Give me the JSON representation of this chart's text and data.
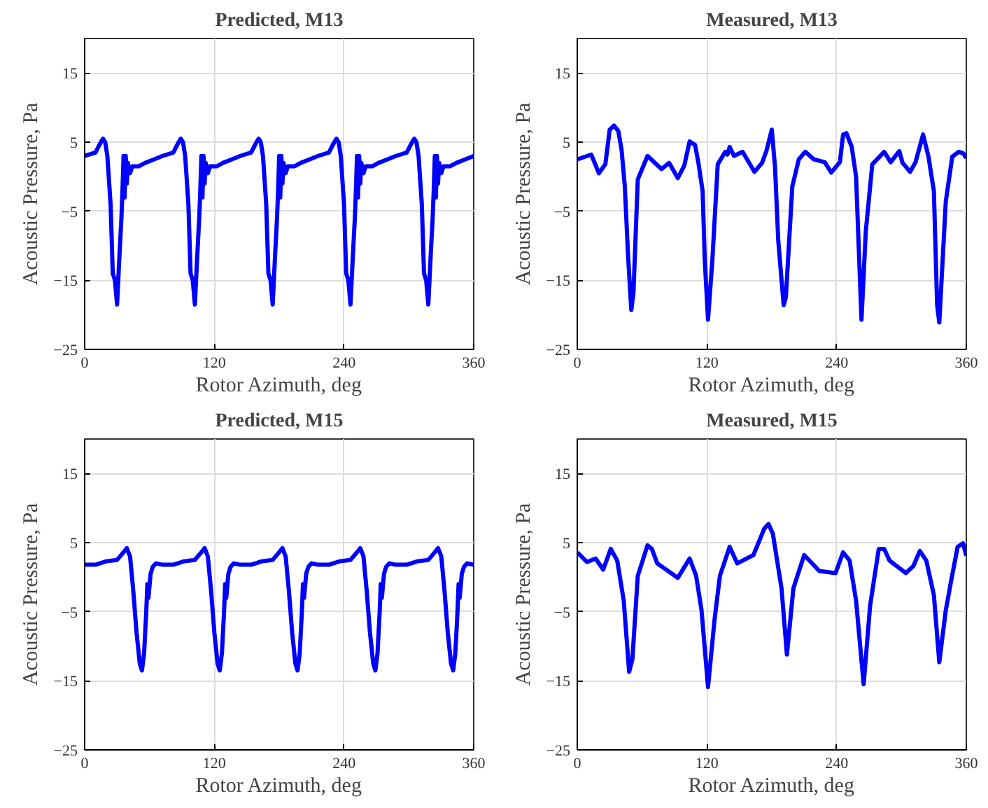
{
  "chart_data": [
    {
      "type": "line",
      "title": "Predicted, M13",
      "xlabel": "Rotor Azimuth, deg",
      "ylabel": "Acoustic Pressure, Pa",
      "xlim": [
        0,
        360
      ],
      "xticks": [
        0,
        120,
        240,
        360
      ],
      "ylim": [
        -25,
        20
      ],
      "yticks": [
        -25,
        -15,
        -5,
        5,
        15
      ],
      "grid": true,
      "line_style": "solid",
      "marker": "none",
      "series": [
        {
          "color": "#0000ff",
          "x": [
            0,
            10,
            15,
            17,
            19,
            21,
            24,
            26,
            28,
            30,
            32,
            34,
            35,
            36,
            37,
            38,
            39,
            40,
            42,
            44,
            50,
            56,
            64,
            72,
            82,
            87,
            89,
            91,
            93,
            96,
            98,
            100,
            102,
            104,
            106,
            107,
            108,
            109,
            110,
            111,
            112,
            114,
            116,
            122,
            128,
            136,
            144,
            154,
            159,
            161,
            163,
            165,
            168,
            170,
            172,
            174,
            176,
            178,
            179,
            180,
            181,
            182,
            183,
            184,
            186,
            188,
            194,
            200,
            208,
            216,
            226,
            231,
            233,
            235,
            237,
            240,
            242,
            244,
            246,
            248,
            250,
            251,
            252,
            253,
            254,
            255,
            256,
            258,
            260,
            266,
            272,
            280,
            288,
            298,
            303,
            305,
            307,
            309,
            312,
            314,
            316,
            318,
            320,
            322,
            323,
            324,
            325,
            326,
            327,
            328,
            330,
            332,
            338,
            344,
            352,
            360
          ],
          "values": [
            3,
            3.5,
            5,
            5.5,
            5,
            3,
            -4,
            -14,
            -15,
            -18.5,
            -12,
            -6,
            -2,
            3,
            -3,
            3,
            -1,
            2,
            0.5,
            1.5,
            1.5,
            2,
            2.5,
            3,
            3.5,
            5,
            5.5,
            5,
            3,
            -4,
            -14,
            -15,
            -18.5,
            -12,
            -6,
            -2,
            3,
            -3,
            3,
            -1,
            2,
            0.5,
            1.5,
            1.5,
            2,
            2.5,
            3,
            3.5,
            5,
            5.5,
            5,
            3,
            -4,
            -14,
            -15,
            -18.5,
            -12,
            -6,
            -2,
            3,
            -3,
            3,
            -1,
            2,
            0.5,
            1.5,
            1.5,
            2,
            2.5,
            3,
            3.5,
            5,
            5.5,
            5,
            3,
            -4,
            -14,
            -15,
            -18.5,
            -12,
            -6,
            -2,
            3,
            -3,
            3,
            -1,
            2,
            0.5,
            1.5,
            1.5,
            2,
            2.5,
            3,
            3.5,
            5,
            5.5,
            5,
            3,
            -4,
            -14,
            -15,
            -18.5,
            -12,
            -6,
            -2,
            3,
            -3,
            3,
            -1,
            2,
            0.5,
            1.5,
            1.5,
            2,
            2.5,
            3
          ]
        }
      ]
    },
    {
      "type": "line",
      "title": "Measured, M13",
      "xlabel": "Rotor Azimuth, deg",
      "ylabel": "Acoustic Pressure, Pa",
      "xlim": [
        0,
        360
      ],
      "xticks": [
        0,
        120,
        240,
        360
      ],
      "ylim": [
        -25,
        20
      ],
      "yticks": [
        -25,
        -15,
        -5,
        5,
        15
      ],
      "grid": true,
      "line_style": "solid",
      "marker": "none",
      "series": [
        {
          "color": "#0000ff",
          "x": [
            0,
            13,
            20,
            26,
            30,
            34,
            38,
            41,
            44,
            47,
            50,
            52,
            56,
            65,
            78,
            85,
            93,
            99,
            104,
            109,
            112,
            116,
            118,
            121,
            125,
            130,
            137,
            139,
            141,
            145,
            153,
            164,
            171,
            175,
            180,
            183,
            186,
            191,
            193,
            199,
            205,
            211,
            219,
            229,
            235,
            243,
            246,
            249,
            254,
            258,
            263,
            267,
            273,
            284,
            290,
            298,
            301,
            308,
            313,
            320,
            325,
            330,
            333,
            335,
            341,
            347,
            353,
            357,
            360
          ],
          "values": [
            2.5,
            3.2,
            0.5,
            1.8,
            6.8,
            7.4,
            6.6,
            3.9,
            -1.4,
            -11.4,
            -19.3,
            -16.8,
            -0.4,
            3,
            1.1,
            2,
            -0.2,
            1.6,
            5.1,
            4.6,
            2.1,
            -2.1,
            -12.1,
            -20.7,
            -12.1,
            1.8,
            3.6,
            3.2,
            4.3,
            3,
            3.6,
            0.7,
            2,
            3.7,
            6.8,
            1.4,
            -9.3,
            -18.6,
            -17.5,
            -1.4,
            2.5,
            3.6,
            2.5,
            2.1,
            0.6,
            2.1,
            6.1,
            6.3,
            4.3,
            0,
            -20.7,
            -7.9,
            1.8,
            3.6,
            2.1,
            3.7,
            2,
            0.7,
            2.1,
            6.1,
            2.9,
            -2.1,
            -18.6,
            -21.1,
            -3.6,
            2.9,
            3.6,
            3.4,
            2.7
          ]
        }
      ]
    },
    {
      "type": "line",
      "title": "Predicted, M15",
      "xlabel": "Rotor Azimuth, deg",
      "ylabel": "Acoustic Pressure, Pa",
      "xlim": [
        0,
        360
      ],
      "xticks": [
        0,
        120,
        240,
        360
      ],
      "ylim": [
        -25,
        20
      ],
      "yticks": [
        -25,
        -15,
        -5,
        5,
        15
      ],
      "grid": true,
      "line_style": "solid",
      "marker": "none",
      "series": [
        {
          "color": "#0000ff",
          "x": [
            0,
            10,
            20,
            30,
            37,
            39,
            42,
            45,
            48,
            51,
            53,
            55,
            57,
            58,
            59,
            61,
            63,
            66,
            72,
            82,
            92,
            102,
            109,
            111,
            114,
            117,
            120,
            123,
            125,
            127,
            129,
            130,
            131,
            133,
            135,
            138,
            144,
            154,
            164,
            174,
            181,
            183,
            186,
            189,
            192,
            195,
            197,
            199,
            201,
            202,
            203,
            205,
            207,
            210,
            216,
            226,
            236,
            246,
            253,
            255,
            258,
            261,
            264,
            267,
            269,
            271,
            273,
            274,
            275,
            277,
            279,
            282,
            288,
            298,
            308,
            318,
            325,
            327,
            330,
            333,
            336,
            339,
            341,
            343,
            345,
            346,
            347,
            349,
            351,
            354,
            360
          ],
          "values": [
            1.8,
            1.8,
            2.3,
            2.5,
            3.8,
            4.2,
            3,
            -2,
            -8,
            -12.5,
            -13.5,
            -11,
            -5,
            -1,
            -3,
            0.5,
            1.5,
            2,
            1.8,
            1.8,
            2.3,
            2.5,
            3.8,
            4.2,
            3,
            -2,
            -8,
            -12.5,
            -13.5,
            -11,
            -5,
            -1,
            -3,
            0.5,
            1.5,
            2,
            1.8,
            1.8,
            2.3,
            2.5,
            3.8,
            4.2,
            3,
            -2,
            -8,
            -12.5,
            -13.5,
            -11,
            -5,
            -1,
            -3,
            0.5,
            1.5,
            2,
            1.8,
            1.8,
            2.3,
            2.5,
            3.8,
            4.2,
            3,
            -2,
            -8,
            -12.5,
            -13.5,
            -11,
            -5,
            -1,
            -3,
            0.5,
            1.5,
            2,
            1.8,
            1.8,
            2.3,
            2.5,
            3.8,
            4.2,
            3,
            -2,
            -8,
            -12.5,
            -13.5,
            -11,
            -5,
            -1,
            -3,
            0.5,
            1.5,
            2,
            1.8
          ]
        }
      ]
    },
    {
      "type": "line",
      "title": "Measured, M15",
      "xlabel": "Rotor Azimuth, deg",
      "ylabel": "Acoustic Pressure, Pa",
      "xlim": [
        0,
        360
      ],
      "xticks": [
        0,
        120,
        240,
        360
      ],
      "ylim": [
        -25,
        20
      ],
      "yticks": [
        -25,
        -15,
        -5,
        5,
        15
      ],
      "grid": true,
      "line_style": "solid",
      "marker": "none",
      "series": [
        {
          "color": "#0000ff",
          "x": [
            0,
            9,
            17,
            24,
            31,
            37,
            43,
            48,
            51,
            56,
            65,
            69,
            74,
            93,
            104,
            110,
            115,
            121,
            127,
            132,
            141,
            148,
            163,
            173,
            177,
            181,
            189,
            194,
            200,
            210,
            224,
            239,
            246,
            252,
            258,
            265,
            271,
            279,
            284,
            289,
            304,
            311,
            317,
            323,
            330,
            335,
            341,
            346,
            352,
            357,
            360
          ],
          "values": [
            3.6,
            2.2,
            2.7,
            1.1,
            4.1,
            2.4,
            -3.4,
            -13.7,
            -11.9,
            0.2,
            4.6,
            4.1,
            2,
            -0.1,
            2.7,
            0.2,
            -4.8,
            -15.9,
            -6.2,
            0.2,
            4.4,
            2,
            3.2,
            7,
            7.7,
            6.3,
            -1.6,
            -11.2,
            -1.6,
            3.2,
            0.9,
            0.6,
            3.6,
            2.4,
            -3.4,
            -15.5,
            -4.1,
            4.1,
            4.1,
            2.4,
            0.6,
            1.6,
            3.8,
            2.4,
            -2.6,
            -12.3,
            -4.8,
            -0.5,
            4.4,
            4.9,
            3.1
          ]
        }
      ]
    }
  ]
}
